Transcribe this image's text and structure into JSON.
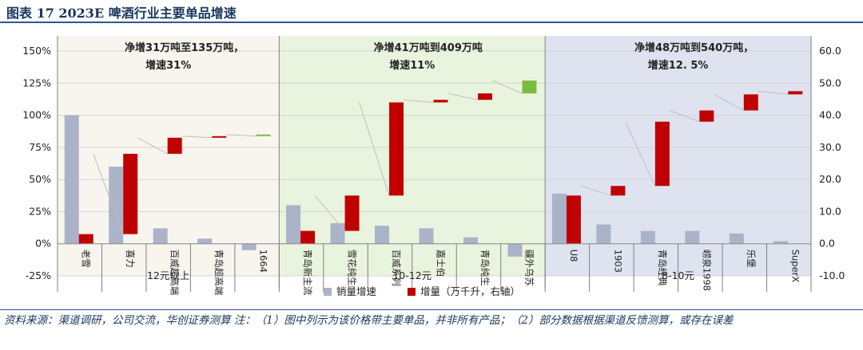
{
  "title": "图表 17  2023E 啤酒行业主要单品增速",
  "chart_data": {
    "type": "bar",
    "categories": [
      "老雪",
      "喜力",
      "百威超高端",
      "青岛超高端",
      "1664",
      "青岛新主流",
      "雪花纯生",
      "百威系列",
      "嘉士伯",
      "青岛纯生",
      "疆外乌苏",
      "U8",
      "1903",
      "青岛经典",
      "崂泉1998",
      "乐堡",
      "SuperX"
    ],
    "series": [
      {
        "name": "销量增速",
        "axis": "left",
        "color": "#aab3c8",
        "values": [
          1.0,
          0.6,
          0.12,
          0.04,
          -0.05,
          0.3,
          0.16,
          0.14,
          0.12,
          0.05,
          -0.1,
          0.39,
          0.15,
          0.1,
          0.1,
          0.08,
          0.02
        ]
      },
      {
        "name": "增量（万千升，右轴）",
        "axis": "right",
        "type": "waterfall",
        "color": "#c00000",
        "values": [
          3,
          25,
          5,
          0.5,
          0.5,
          4,
          11,
          29,
          0.8,
          2,
          4,
          15,
          3,
          20,
          3.5,
          5,
          1
        ],
        "colors": [
          "#c00000",
          "#c00000",
          "#c00000",
          "#c00000",
          "#7cbb3e",
          "#c00000",
          "#c00000",
          "#c00000",
          "#c00000",
          "#c00000",
          "#7cbb3e",
          "#c00000",
          "#c00000",
          "#c00000",
          "#c00000",
          "#c00000",
          "#c00000"
        ]
      }
    ],
    "y_left": {
      "ylim": [
        -0.25,
        1.5
      ],
      "ticks": [
        "-25%",
        "0%",
        "25%",
        "50%",
        "75%",
        "100%",
        "125%",
        "150%"
      ]
    },
    "y_right": {
      "ylim": [
        -10,
        60
      ],
      "ticks": [
        "-10.0",
        "0.0",
        "10.0",
        "20.0",
        "30.0",
        "40.0",
        "50.0",
        "60.0"
      ]
    },
    "groups": [
      {
        "label": "12元以上",
        "annotation": [
          "净增31万吨至135万吨，",
          "增速31%"
        ],
        "bg": "#f7f5ee",
        "count": 5
      },
      {
        "label": "10-12元",
        "annotation": [
          "净增41万吨到409万吨",
          "增速11%"
        ],
        "bg": "#e9f4de",
        "count": 6
      },
      {
        "label": "8-10元",
        "annotation": [
          "净增48万吨到540万吨，",
          "增速12. 5%"
        ],
        "bg": "#dfe3f0",
        "count": 6
      }
    ],
    "legend": {
      "position": "bottom",
      "items": [
        "销量增速",
        "增量（万千升，右轴）"
      ]
    },
    "grid": true
  },
  "source_note": "资料来源：渠道调研，公司交流，华创证券测算  注：（1）图中列示为该价格带主要单品，并非所有产品；（2）部分数据根据渠道反馈测算，或存在误差"
}
